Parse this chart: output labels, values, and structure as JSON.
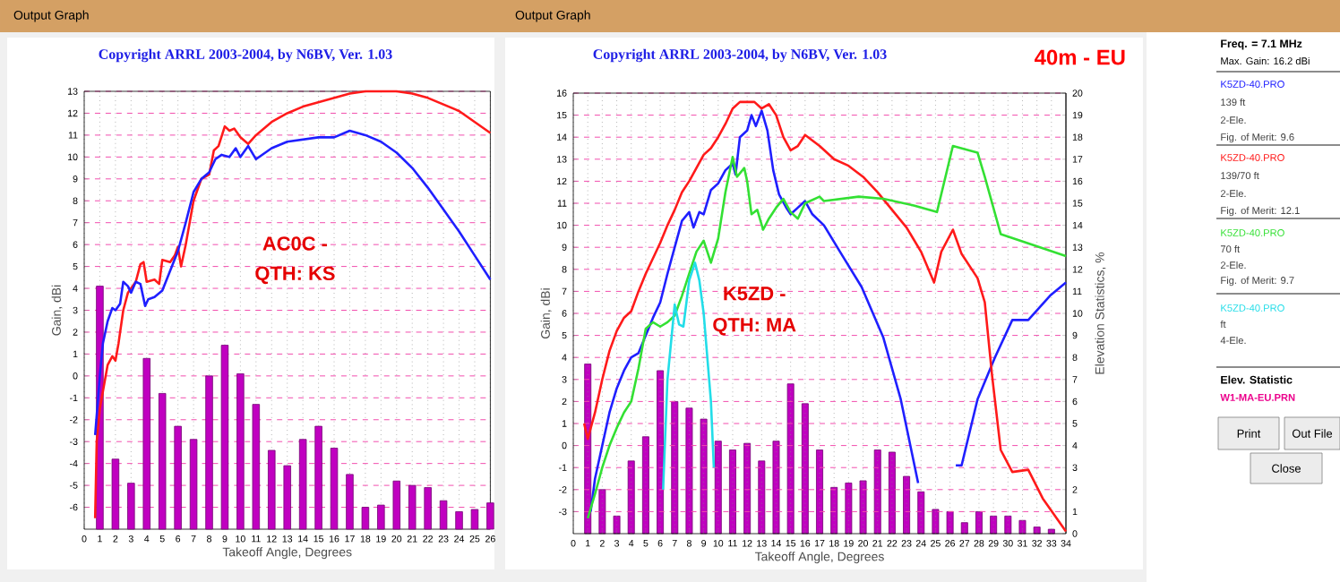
{
  "chart_data": [
    {
      "type": "line",
      "title": "Copyright ARRL 2003-2004, by N6BV, Ver. 1.03",
      "xlabel": "Takeoff Angle, Degrees",
      "ylabel": "Gain, dBi",
      "xlim": [
        0,
        26
      ],
      "xticks": [
        0,
        1,
        2,
        3,
        4,
        5,
        6,
        7,
        8,
        9,
        10,
        11,
        12,
        13,
        14,
        15,
        16,
        17,
        18,
        19,
        20,
        21,
        22,
        23,
        24,
        25,
        26
      ],
      "ylim": [
        -7,
        13
      ],
      "yticks": [
        -6,
        -5,
        -4,
        -3,
        -2,
        -1,
        0,
        1,
        2,
        3,
        4,
        5,
        6,
        7,
        8,
        9,
        10,
        11,
        12,
        13
      ],
      "grid": true,
      "annotations": [
        "Output Graph",
        "AC0C -",
        "QTH:  KS"
      ],
      "series": [
        {
          "type": "bar",
          "color": "#c000c0",
          "x": [
            1,
            2,
            3,
            4,
            5,
            6,
            7,
            8,
            9,
            10,
            11,
            12,
            13,
            14,
            15,
            16,
            17,
            18,
            19,
            20,
            21,
            22,
            23,
            24,
            25,
            26
          ],
          "base": [
            -7,
            -7,
            -7,
            -7,
            -7,
            -7,
            -7,
            -7,
            -7,
            -7,
            -7,
            -7,
            -7,
            -7,
            -7,
            -7,
            -7,
            -7,
            -7,
            -7,
            -7,
            -7,
            -7,
            -7,
            -7,
            -7
          ],
          "values": [
            11.1,
            3.2,
            2.1,
            7.8,
            6.2,
            4.7,
            4.1,
            7.0,
            8.4,
            7.1,
            5.7,
            3.6,
            2.9,
            4.1,
            4.7,
            3.7,
            2.5,
            1.0,
            1.1,
            2.2,
            2.0,
            1.9,
            1.3,
            0.8,
            0.9,
            1.2
          ]
        },
        {
          "color": "#ff1a1a",
          "x": [
            0.7,
            0.8,
            1,
            1.5,
            1.8,
            2,
            2.2,
            2.5,
            2.8,
            3,
            3.3,
            3.6,
            3.8,
            4,
            4.5,
            4.8,
            5,
            5.5,
            5.8,
            6,
            6.2,
            6.5,
            7,
            7.5,
            8,
            8.3,
            8.6,
            9,
            9.3,
            9.6,
            10,
            10.5,
            11,
            12,
            13,
            14,
            15,
            16,
            17,
            18,
            19,
            20,
            21,
            22,
            23,
            24,
            25,
            26
          ],
          "values": [
            -6.5,
            -3,
            -1.5,
            0.5,
            0.9,
            0.7,
            1.5,
            3,
            3.8,
            4,
            4.3,
            5.1,
            5.2,
            4.3,
            4.4,
            4.2,
            5.3,
            5.2,
            5.5,
            5.9,
            5.0,
            6,
            8,
            9,
            9.2,
            10.3,
            10.5,
            11.4,
            11.2,
            11.3,
            10.9,
            10.6,
            11,
            11.6,
            12,
            12.3,
            12.5,
            12.7,
            12.9,
            13,
            13,
            13,
            12.9,
            12.7,
            12.4,
            12.1,
            11.6,
            11.1
          ]
        },
        {
          "color": "#1f1fff",
          "x": [
            0.7,
            1,
            1.2,
            1.5,
            1.8,
            2,
            2.3,
            2.5,
            2.8,
            3,
            3.3,
            3.6,
            3.9,
            4.1,
            4.5,
            5,
            5.5,
            6,
            6.5,
            7,
            7.5,
            8,
            8.4,
            8.8,
            9.3,
            9.7,
            10,
            10.5,
            11,
            12,
            13,
            14,
            15,
            16,
            17,
            18,
            19,
            20,
            21,
            22,
            23,
            24,
            25,
            26
          ],
          "values": [
            -2.7,
            0,
            1.5,
            2.5,
            3.1,
            3,
            3.3,
            4.3,
            4.1,
            3.8,
            4.3,
            4.2,
            3.2,
            3.5,
            3.6,
            3.9,
            4.8,
            5.7,
            7,
            8.4,
            9,
            9.3,
            9.9,
            10.1,
            10,
            10.4,
            10,
            10.5,
            9.9,
            10.4,
            10.7,
            10.8,
            10.9,
            10.9,
            11.2,
            11,
            10.7,
            10.2,
            9.5,
            8.6,
            7.6,
            6.6,
            5.5,
            4.4
          ]
        }
      ]
    },
    {
      "type": "line",
      "title": "Copyright ARRL 2003-2004, by N6BV, Ver. 1.03",
      "xlabel": "Takeoff Angle, Degrees",
      "ylabel": "Gain, dBi",
      "y2label": "Elevation Statistics, %",
      "xlim": [
        0,
        34
      ],
      "xticks": [
        0,
        1,
        2,
        3,
        4,
        5,
        6,
        7,
        8,
        9,
        10,
        11,
        12,
        13,
        14,
        15,
        16,
        17,
        18,
        19,
        20,
        21,
        22,
        23,
        24,
        25,
        26,
        27,
        28,
        29,
        30,
        31,
        32,
        33,
        34
      ],
      "ylim": [
        -4,
        16
      ],
      "yticks": [
        -3,
        -2,
        -1,
        0,
        1,
        2,
        3,
        4,
        5,
        6,
        7,
        8,
        9,
        10,
        11,
        12,
        13,
        14,
        15,
        16
      ],
      "y2lim": [
        0,
        20
      ],
      "y2ticks": [
        0,
        1,
        2,
        3,
        4,
        5,
        6,
        7,
        8,
        9,
        10,
        11,
        12,
        13,
        14,
        15,
        16,
        17,
        18,
        19,
        20
      ],
      "grid": true,
      "annotations": [
        "Output Graph",
        "K5ZD -",
        "QTH:  MA",
        "40m - EU"
      ],
      "series": [
        {
          "type": "bar",
          "axis": "y2",
          "color": "#c000c0",
          "x": [
            1,
            2,
            3,
            4,
            5,
            6,
            7,
            8,
            9,
            10,
            11,
            12,
            13,
            14,
            15,
            16,
            17,
            18,
            19,
            20,
            21,
            22,
            23,
            24,
            25,
            26,
            27,
            28,
            29,
            30,
            31,
            32,
            33
          ],
          "values": [
            7.7,
            2.0,
            0.8,
            3.3,
            4.4,
            7.4,
            6.0,
            5.7,
            5.2,
            4.2,
            3.8,
            4.1,
            3.3,
            4.2,
            6.8,
            5.9,
            3.8,
            2.1,
            2.3,
            2.4,
            3.8,
            3.7,
            2.6,
            1.9,
            1.1,
            1.0,
            0.5,
            1.0,
            0.8,
            0.8,
            0.6,
            0.3,
            0.2
          ]
        },
        {
          "name": "K5ZD-40.PRO",
          "color": "#1f1fff",
          "x": [
            1.2,
            1.5,
            2,
            2.5,
            3,
            3.5,
            4,
            4.5,
            5,
            5.5,
            6,
            6.5,
            7,
            7.5,
            8,
            8.3,
            8.7,
            9,
            9.5,
            10,
            10.5,
            11,
            11.2,
            11.5,
            12,
            12.3,
            12.6,
            13,
            13.4,
            13.8,
            14.2,
            14.7,
            15,
            15.5,
            16,
            16.5,
            17.3,
            18.5,
            19.9,
            21.4,
            22.6,
            23.8,
            25,
            26.4,
            26.8,
            27.9,
            29.1,
            30.3,
            31.4,
            32.9,
            34
          ],
          "values": [
            -3,
            -1.5,
            0,
            1.5,
            2.6,
            3.4,
            4,
            4.2,
            5,
            5.8,
            6.5,
            7.8,
            9,
            10.2,
            10.6,
            9.9,
            10.6,
            10.5,
            11.6,
            11.9,
            12.5,
            12.8,
            12.3,
            14,
            14.3,
            15,
            14.5,
            15.2,
            14.3,
            12.5,
            11.4,
            10.8,
            10.5,
            10.8,
            11.1,
            10.5,
            10,
            8.7,
            7.2,
            4.9,
            2.1,
            -1.7,
            null,
            -0.9,
            -0.9,
            2.1,
            4,
            5.7,
            5.7,
            6.8,
            7.4
          ]
        },
        {
          "name": "K5ZD-40.PRO",
          "color": "#ff1a1a",
          "x": [
            0.75,
            1,
            1.5,
            2,
            2.5,
            3,
            3.5,
            4,
            4.5,
            5,
            5.5,
            6,
            6.5,
            7,
            7.5,
            8,
            8.5,
            9,
            9.5,
            10,
            10.5,
            11,
            11.5,
            12.5,
            13,
            13.5,
            14,
            14.5,
            15,
            15.5,
            16,
            17,
            18,
            19,
            20,
            21,
            22,
            23,
            24,
            24.9,
            25.4,
            26.2,
            26.8,
            27.9,
            28.4,
            28.9,
            29.5,
            30.3,
            31.4,
            32.4,
            34
          ],
          "values": [
            1,
            0.3,
            1.5,
            3,
            4.3,
            5.2,
            5.8,
            6.1,
            7,
            7.8,
            8.5,
            9.2,
            10,
            10.7,
            11.5,
            12,
            12.6,
            13.2,
            13.5,
            14,
            14.6,
            15.3,
            15.6,
            15.6,
            15.3,
            15.5,
            15,
            14,
            13.4,
            13.6,
            14.1,
            13.6,
            13,
            12.7,
            12.2,
            11.5,
            10.7,
            9.9,
            8.8,
            7.4,
            8.8,
            9.8,
            8.7,
            7.6,
            6.5,
            3.2,
            -0.2,
            -1.2,
            -1.1,
            -2.4,
            -3.9
          ]
        },
        {
          "name": "K5ZD-40.PRO",
          "color": "#33e033",
          "x": [
            1,
            1.5,
            2,
            2.5,
            3,
            3.5,
            4,
            4.5,
            5,
            5.5,
            6,
            6.5,
            7,
            7.5,
            8,
            8.5,
            9,
            9.5,
            10,
            10.5,
            11,
            11.3,
            11.8,
            12,
            12.3,
            12.7,
            13.1,
            13.5,
            14,
            14.5,
            15,
            15.5,
            16,
            17,
            17.3,
            19.7,
            21.4,
            23.5,
            25.1,
            26.2,
            27.9,
            28.4,
            29.5,
            31.3,
            34
          ],
          "values": [
            -3.3,
            -2.2,
            -1,
            0,
            0.8,
            1.5,
            2,
            3.5,
            5.3,
            5.6,
            5.4,
            5.6,
            5.9,
            6.8,
            7.8,
            8.8,
            9.3,
            8.3,
            9.4,
            11.5,
            13.1,
            12.2,
            12.6,
            12,
            10.5,
            10.7,
            9.8,
            10.3,
            10.8,
            11.2,
            10.6,
            10.3,
            11,
            11.3,
            11.1,
            11.3,
            11.2,
            10.9,
            10.6,
            13.6,
            13.3,
            12.2,
            9.6,
            9.2,
            8.6
          ]
        },
        {
          "name": "K5ZD-40.PRO",
          "color": "#22dde8",
          "x": [
            6.2,
            6.5,
            7,
            7.3,
            7.6,
            8,
            8.4,
            8.7,
            9,
            9.5,
            9.7
          ],
          "values": [
            -2,
            3,
            6.4,
            5.5,
            5.4,
            7.5,
            8.3,
            7.5,
            6,
            2,
            -1
          ]
        }
      ]
    },
    {
      "type": "other",
      "title": "Freq. = 7.1 MHz",
      "subtitle": "Max. Gain: 16.2 dBi",
      "annotations": [
        "139 ft",
        "2-Ele.",
        "Fig. of Merit: 9.6",
        "139/70 ft",
        "2-Ele.",
        "Fig. of Merit: 12.1",
        "70 ft",
        "2-Ele.",
        "Fig. of Merit: 9.7",
        "ft",
        "4-Ele.",
        "Elev. Statistic",
        "W1-MA-EU.PRN",
        "Print",
        "Out File",
        "Close"
      ]
    }
  ]
}
